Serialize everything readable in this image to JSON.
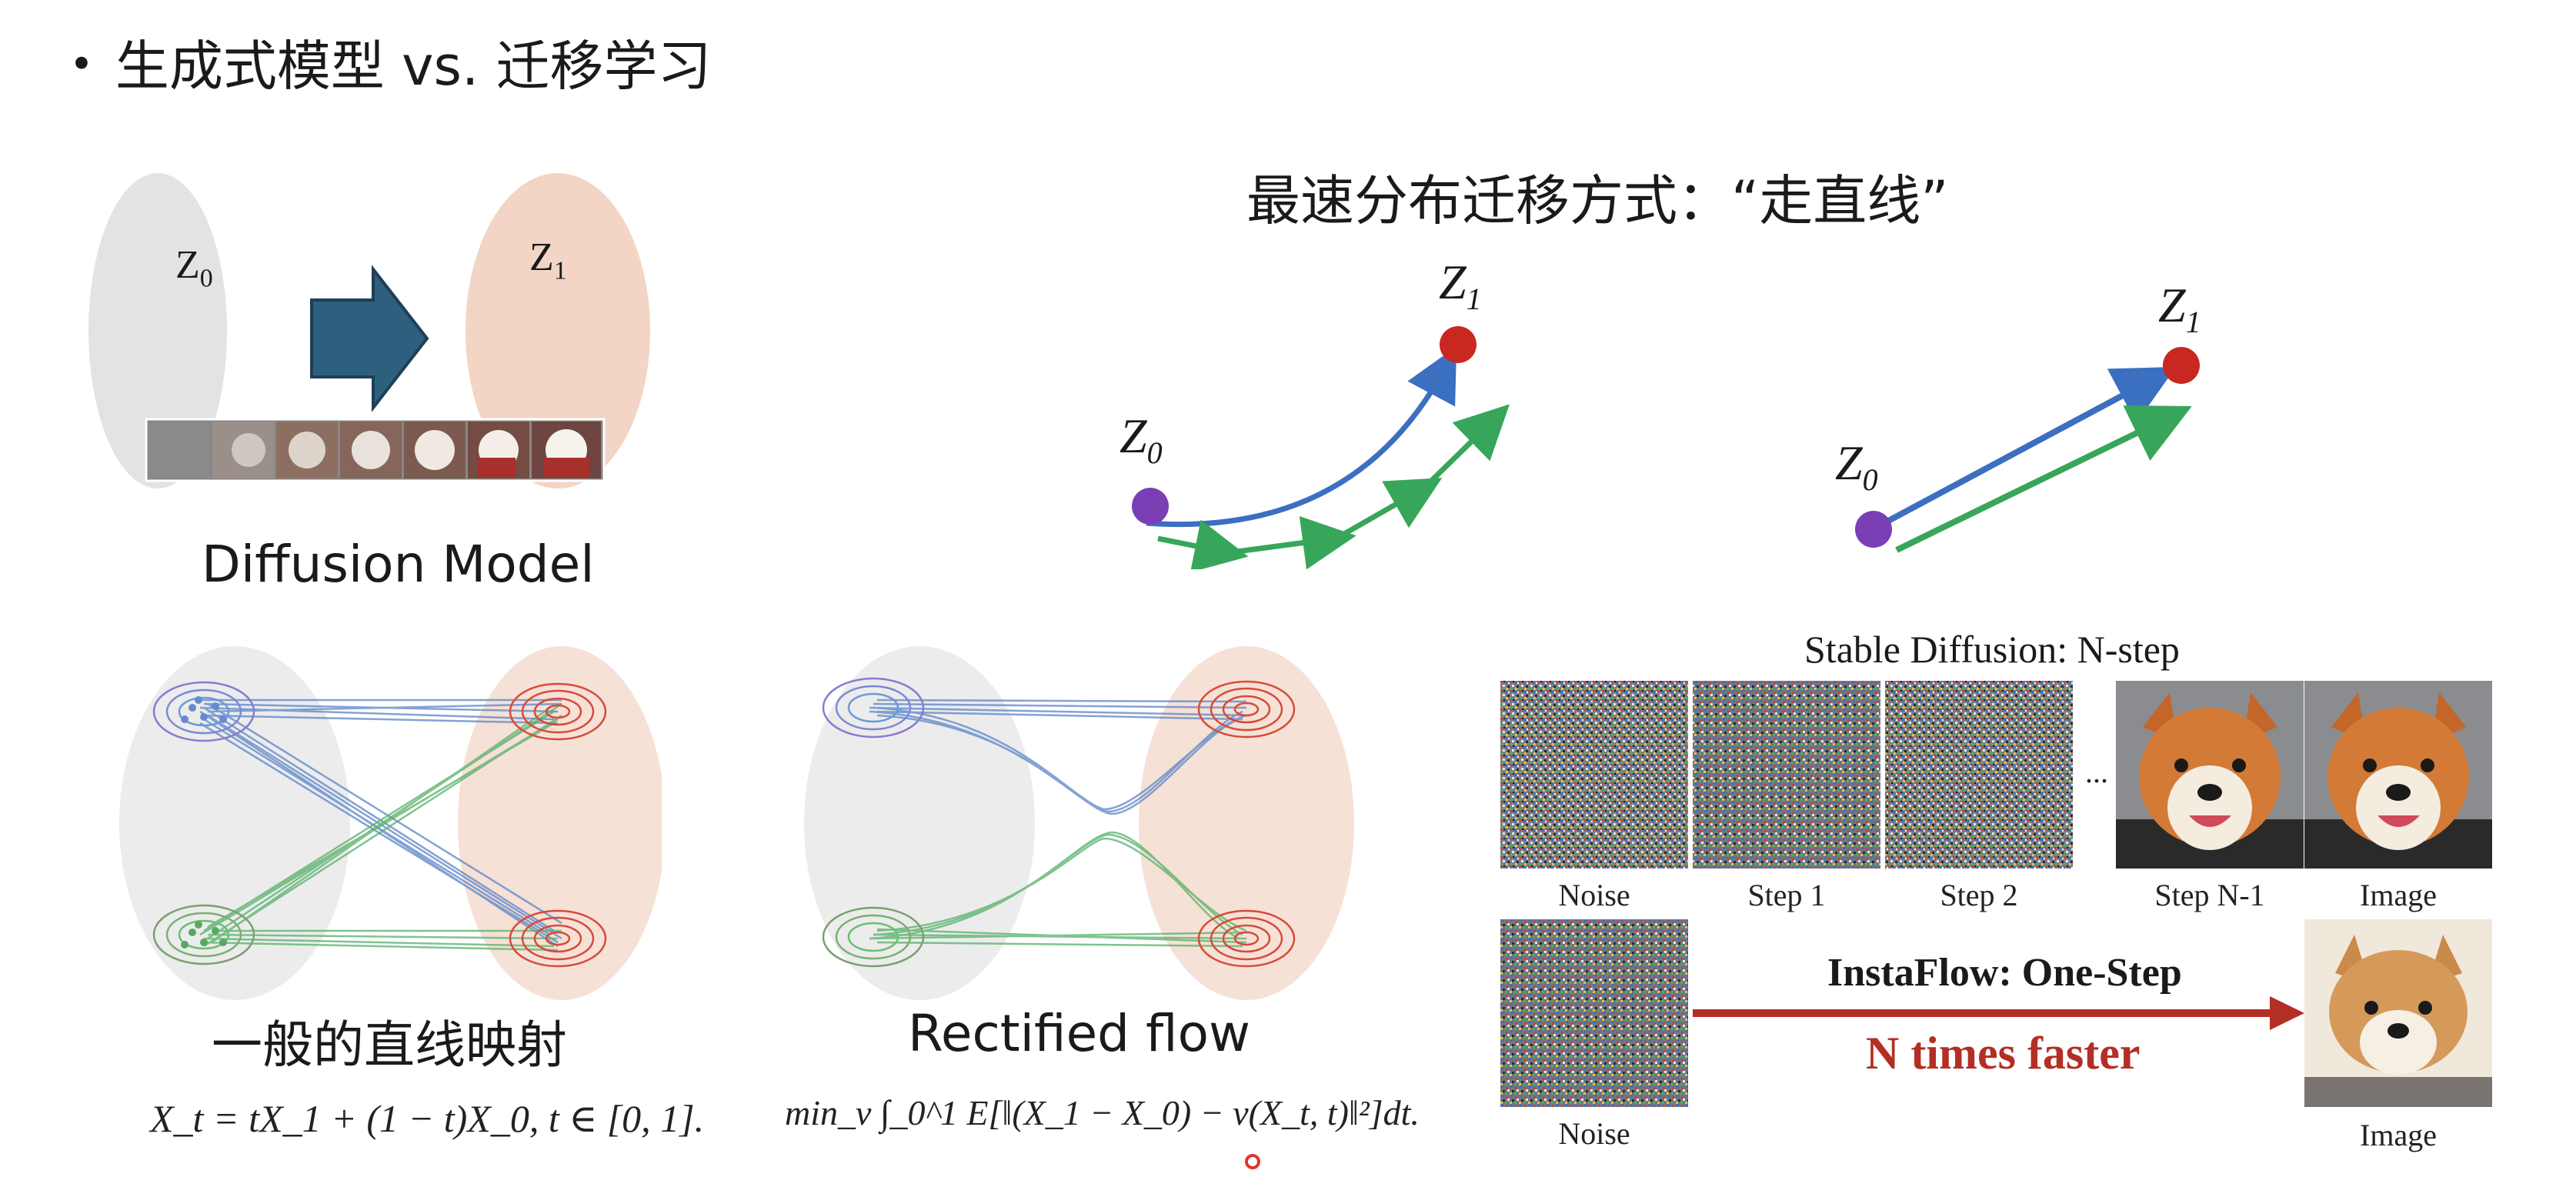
{
  "title": {
    "bullet": "•",
    "text": "生成式模型 vs. 迁移学习"
  },
  "diffusion": {
    "z0": "Z",
    "z0_sub": "0",
    "z1": "Z",
    "z1_sub": "1",
    "caption": "Diffusion Model",
    "colors": {
      "left_ellipse": "#e3e3e3",
      "right_ellipse": "#f2d5c4",
      "arrow": "#2f5f7f"
    }
  },
  "fastest": {
    "heading": "最速分布迁移方式：“走直线”",
    "curve": {
      "z0": "Z",
      "z0_sub": "0",
      "z1": "Z",
      "z1_sub": "1"
    },
    "straight": {
      "z0": "Z",
      "z0_sub": "0",
      "z1": "Z",
      "z1_sub": "1"
    },
    "colors": {
      "start": "#7b3fb5",
      "end": "#c8281f",
      "blue": "#3b6fc0",
      "green": "#38a65a"
    }
  },
  "general_mapping": {
    "caption": "一般的直线映射",
    "formula": "X_t = tX_1 + (1 − t)X_0,    t ∈ [0, 1]."
  },
  "rectified": {
    "caption": "Rectified flow",
    "formula": "min_v ∫_0^1 E[‖(X_1 − X_0) − v(X_t, t)‖²]dt."
  },
  "stable_diffusion": {
    "heading": "Stable Diffusion: N-step",
    "labels": [
      "Noise",
      "Step 1",
      "Step 2",
      "Step N-1",
      "Image"
    ],
    "ellipsis": "..."
  },
  "instaflow": {
    "noise_label": "Noise",
    "title": "InstaFlow: One-Step",
    "subtitle": "N times faster",
    "image_label": "Image",
    "colors": {
      "arrow": "#b32e24",
      "subtitle": "#b32e24"
    }
  }
}
